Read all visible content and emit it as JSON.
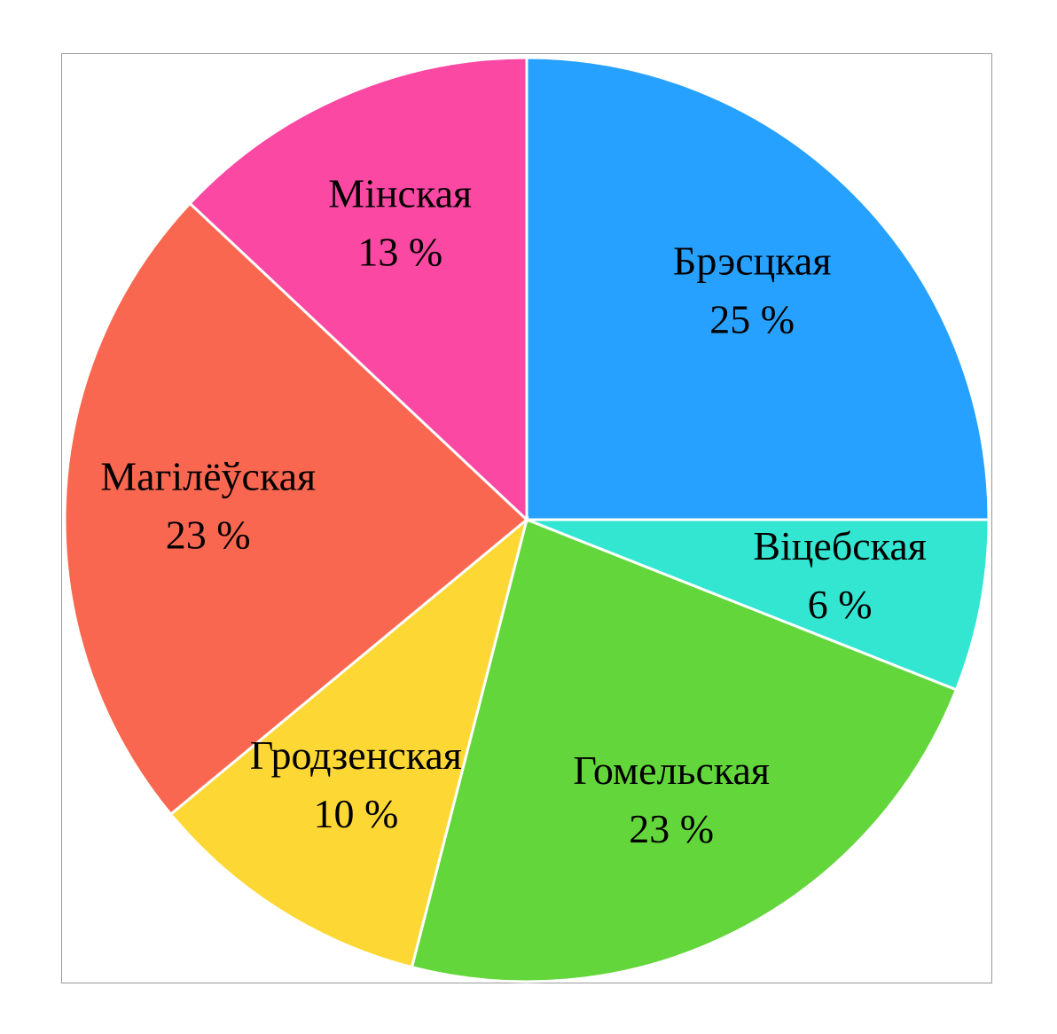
{
  "chart_data": {
    "type": "pie",
    "categories": [
      "Брэсцкая",
      "Віцебская",
      "Гомельская",
      "Гродзенская",
      "Магілёўская",
      "Мінская"
    ],
    "values": [
      25,
      6,
      23,
      10,
      23,
      13
    ],
    "value_labels": [
      "25 %",
      "6 %",
      "23 %",
      "10 %",
      "23 %",
      "13 %"
    ],
    "colors": [
      "#26a1ff",
      "#33e6d2",
      "#63d63b",
      "#fdd835",
      "#fa6751",
      "#fa48a3"
    ]
  }
}
